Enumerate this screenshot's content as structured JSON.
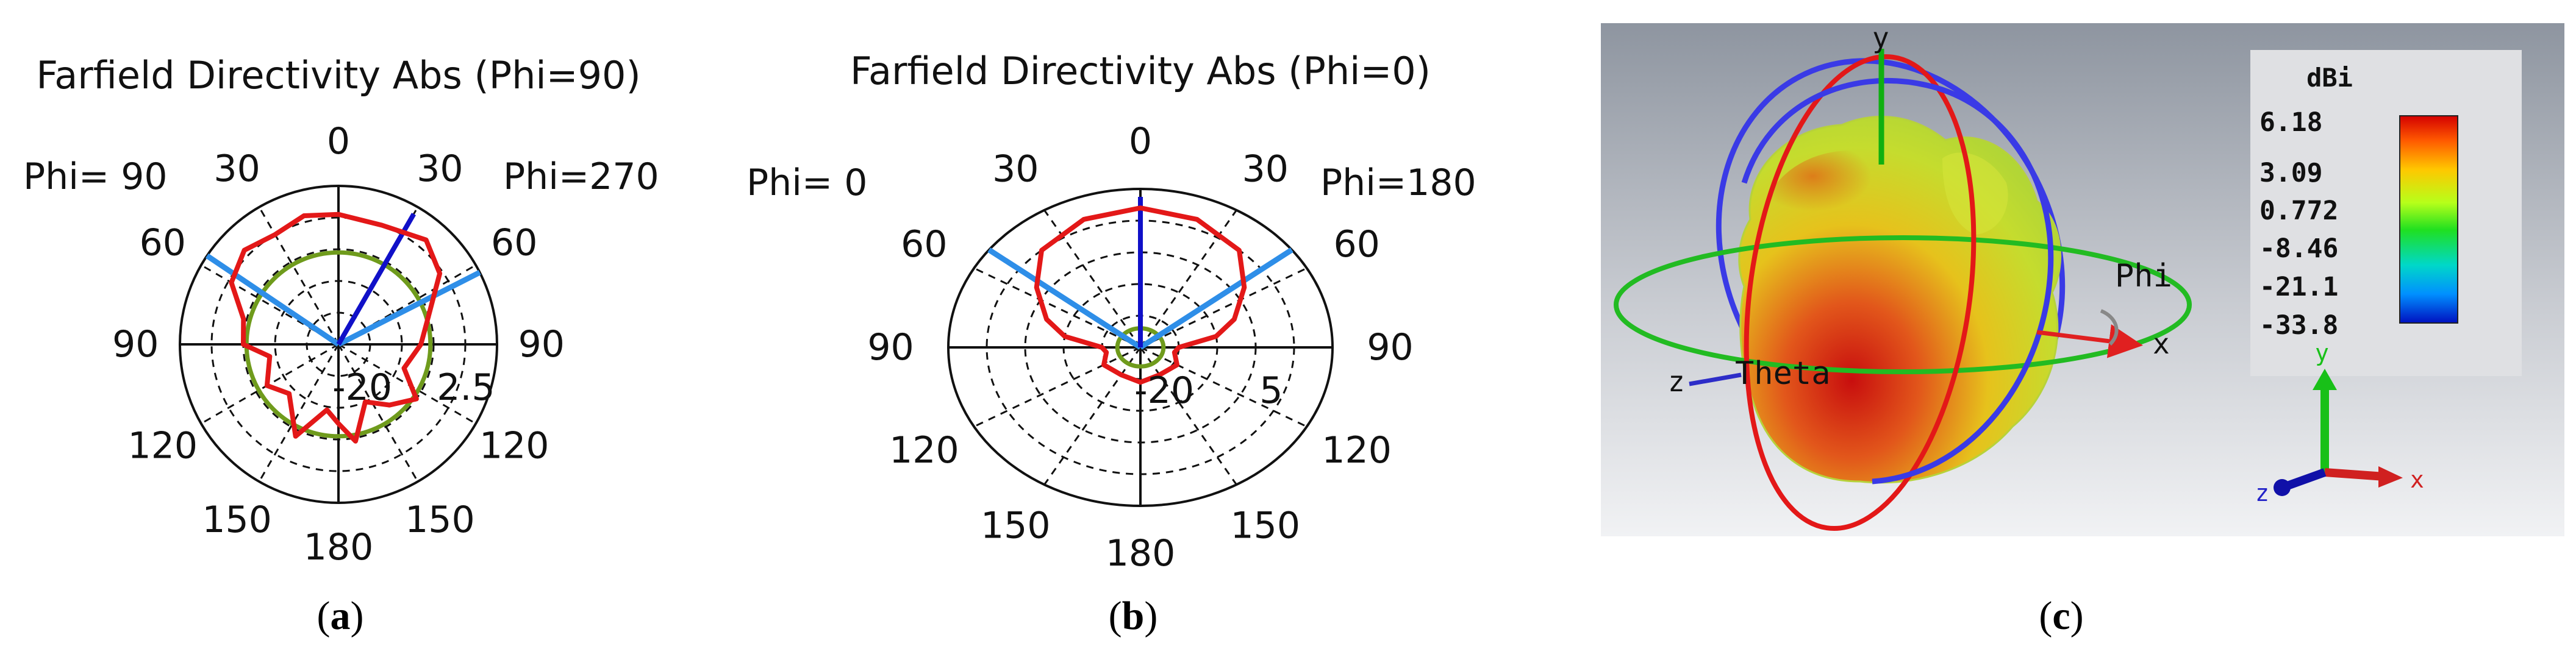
{
  "chart_data": [
    {
      "type": "polar-line",
      "panel": "a",
      "title": "Farfield Directivity Abs (Phi=90)",
      "left_label": "Phi= 90",
      "right_label": "Phi=270",
      "angle_labels": [
        "0",
        "30",
        "60",
        "90",
        "120",
        "150",
        "180",
        "150",
        "120",
        "90",
        "60",
        "30"
      ],
      "radial_labels": [
        "-20",
        "2.5"
      ],
      "rmax": 0.95,
      "pattern_angles": [
        0,
        20,
        40,
        55,
        75,
        90,
        110,
        125,
        140,
        155,
        170,
        180,
        190,
        205,
        225,
        240,
        260,
        270,
        285,
        300,
        315,
        330,
        345
      ],
      "pattern_r": [
        0.82,
        0.8,
        0.86,
        0.78,
        0.58,
        0.52,
        0.44,
        0.6,
        0.5,
        0.4,
        0.62,
        0.5,
        0.42,
        0.64,
        0.44,
        0.52,
        0.44,
        0.6,
        0.62,
        0.78,
        0.84,
        0.8,
        0.84
      ],
      "reference_circle_r": 0.58,
      "main_lobe_deg": 30,
      "beam_lines_deg": [
        -56,
        63
      ],
      "colors": {
        "pattern": "#e31818",
        "reference": "#6f9b1c",
        "main_lobe": "#1010c8",
        "beam": "#2e8ee8"
      }
    },
    {
      "type": "polar-line",
      "panel": "b",
      "title": "Farfield Directivity Abs (Phi=0)",
      "left_label": "Phi=  0",
      "right_label": "Phi=180",
      "angle_labels": [
        "0",
        "30",
        "60",
        "90",
        "120",
        "150",
        "180",
        "150",
        "120",
        "90",
        "60",
        "30"
      ],
      "radial_labels": [
        "-20",
        "5"
      ],
      "rmax": 0.95,
      "pattern_angles": [
        0,
        20,
        40,
        55,
        70,
        80,
        90,
        100,
        120,
        150,
        180,
        210,
        240,
        260,
        270,
        280,
        290,
        305,
        320,
        340
      ],
      "pattern_r": [
        0.88,
        0.86,
        0.8,
        0.66,
        0.52,
        0.4,
        0.2,
        0.18,
        0.22,
        0.2,
        0.22,
        0.2,
        0.22,
        0.18,
        0.2,
        0.4,
        0.52,
        0.66,
        0.8,
        0.86
      ],
      "reference_circle_r": 0.12,
      "main_lobe_deg": 0,
      "beam_lines_deg": [
        -52,
        52
      ],
      "colors": {
        "pattern": "#e31818",
        "reference": "#6f9b1c",
        "main_lobe": "#1010c8",
        "beam": "#2e8ee8"
      }
    }
  ],
  "farfield_3d": {
    "axes": {
      "x": "x",
      "y": "y",
      "z": "z"
    },
    "angle_labels": {
      "theta": "Theta",
      "phi": "Phi"
    },
    "colorbar_title": "dBi",
    "colorbar_values": [
      "6.18",
      "3.09",
      "0.772",
      "-8.46",
      "-21.1",
      "-33.8"
    ],
    "colors": {
      "background_top": "#8f96a0",
      "background_bottom": "#f0f1f3",
      "circle_theta": "#e31818",
      "circle_phi": "#3a3ae6",
      "circle_equator": "#22bb22"
    }
  },
  "captions": {
    "a": "a",
    "b": "b",
    "c": "c"
  }
}
